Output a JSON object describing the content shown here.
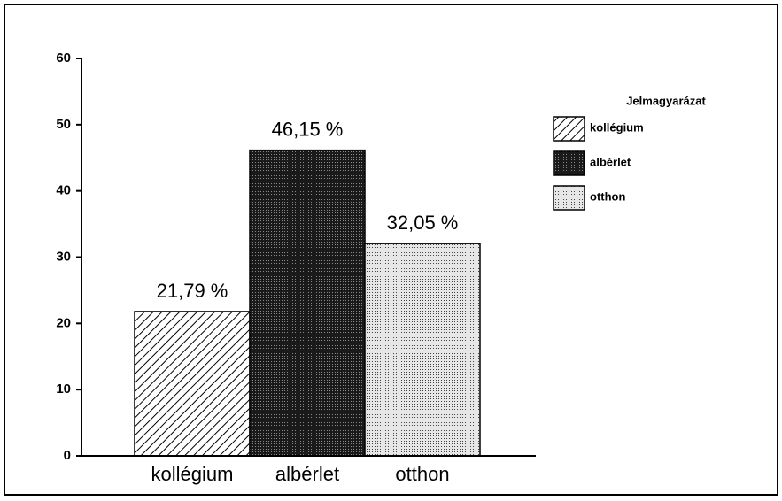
{
  "chart_data": {
    "type": "bar",
    "categories": [
      "kollégium",
      "albérlet",
      "otthon"
    ],
    "values": [
      21.79,
      46.15,
      32.05
    ],
    "value_labels": [
      "21,79 %",
      "46,15 %",
      "32,05 %"
    ],
    "patterns": [
      "hatch",
      "dark",
      "dots"
    ],
    "ylim": [
      0,
      60
    ],
    "yticks": [
      0,
      10,
      20,
      30,
      40,
      50,
      60
    ],
    "legend_title": "Jelmagyarázat",
    "legend": "right"
  }
}
